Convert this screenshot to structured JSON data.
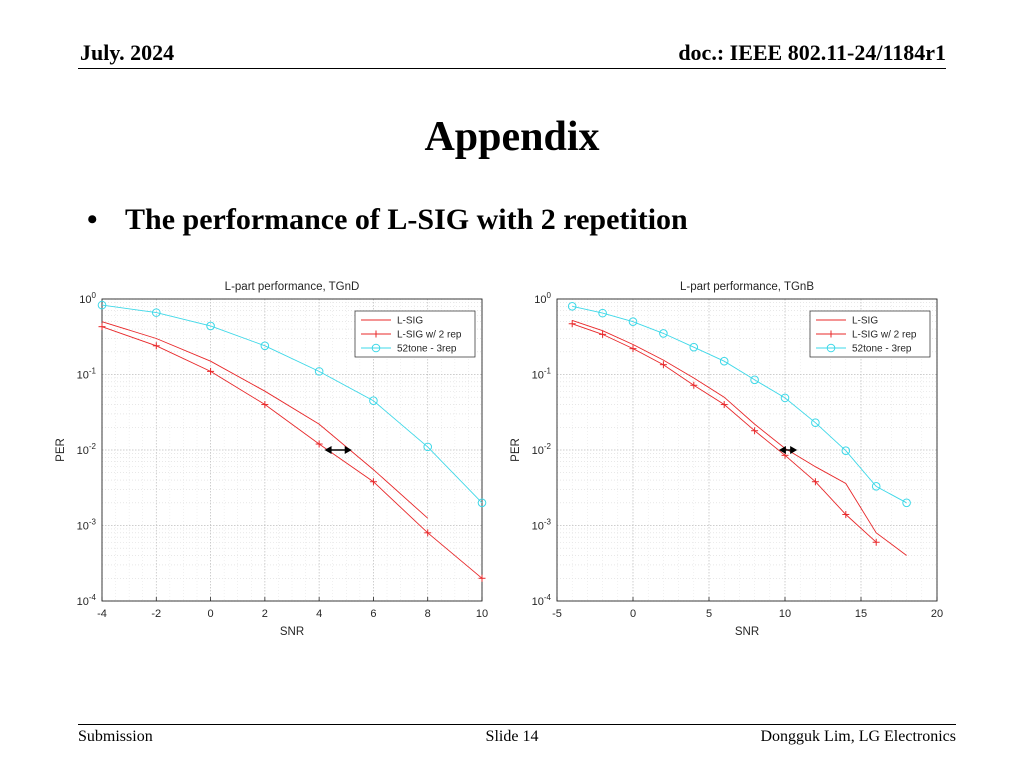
{
  "header": {
    "date": "July. 2024",
    "doc": "doc.: IEEE 802.11-24/1184r1"
  },
  "slide": {
    "title": "Appendix",
    "bullet_marker": "•",
    "bullet_text": "The performance of L-SIG with 2 repetition"
  },
  "footer": {
    "left": "Submission",
    "center": "Slide 14",
    "right": "Dongguk Lim, LG Electronics"
  },
  "colors": {
    "lsig": "#e8282a",
    "lsig_rep": "#e8282a",
    "tone52": "#3ed8e8",
    "arrow": "#000000",
    "grid": "#bdbdbd"
  },
  "chart_data": [
    {
      "type": "line",
      "title": "L-part performance, TGnD",
      "xlabel": "SNR",
      "ylabel": "PER",
      "yscale": "log",
      "xlim": [
        -4,
        10
      ],
      "ylim": [
        0.0001,
        1
      ],
      "xticks": [
        "-4",
        "-2",
        "0",
        "2",
        "4",
        "6",
        "8",
        "10"
      ],
      "grid": true,
      "legend_position": "top-right",
      "series": [
        {
          "name": "L-SIG",
          "marker": "none",
          "x": [
            -4,
            -2,
            0,
            2,
            4,
            6,
            8
          ],
          "y": [
            0.5,
            0.3,
            0.15,
            0.06,
            0.022,
            0.0055,
            0.00125
          ]
        },
        {
          "name": "L-SIG w/ 2 rep",
          "marker": "plus",
          "x": [
            -4,
            -2,
            0,
            2,
            4,
            6,
            8,
            10
          ],
          "y": [
            0.43,
            0.24,
            0.11,
            0.04,
            0.012,
            0.0038,
            0.0008,
            0.0002
          ]
        },
        {
          "name": "52tone - 3rep",
          "marker": "circle",
          "x": [
            -4,
            -2,
            0,
            2,
            4,
            6,
            8,
            10
          ],
          "y": [
            0.83,
            0.66,
            0.44,
            0.24,
            0.11,
            0.045,
            0.011,
            0.002
          ]
        }
      ],
      "annotations": [
        {
          "type": "double-arrow",
          "x_from": 4.2,
          "x_to": 5.2,
          "y": 0.01
        }
      ]
    },
    {
      "type": "line",
      "title": "L-part performance, TGnB",
      "xlabel": "SNR",
      "ylabel": "PER",
      "yscale": "log",
      "xlim": [
        -5,
        20
      ],
      "ylim": [
        0.0001,
        1
      ],
      "xticks": [
        "-5",
        "0",
        "5",
        "10",
        "15",
        "20"
      ],
      "grid": true,
      "legend_position": "top-right",
      "series": [
        {
          "name": "L-SIG",
          "marker": "none",
          "x": [
            -4,
            -2,
            0,
            2,
            4,
            6,
            8,
            10,
            12,
            14,
            16,
            18
          ],
          "y": [
            0.52,
            0.38,
            0.25,
            0.155,
            0.09,
            0.05,
            0.022,
            0.0105,
            0.006,
            0.0036,
            0.0008,
            0.0004
          ]
        },
        {
          "name": "L-SIG w/ 2 rep",
          "marker": "plus",
          "x": [
            -4,
            -2,
            0,
            2,
            4,
            6,
            8,
            10,
            12,
            14,
            16
          ],
          "y": [
            0.47,
            0.34,
            0.22,
            0.135,
            0.072,
            0.04,
            0.018,
            0.0085,
            0.0038,
            0.0014,
            0.0006
          ]
        },
        {
          "name": "52tone - 3rep",
          "marker": "circle",
          "x": [
            -4,
            -2,
            0,
            2,
            4,
            6,
            8,
            10,
            12,
            14,
            16,
            18
          ],
          "y": [
            0.8,
            0.65,
            0.5,
            0.35,
            0.23,
            0.15,
            0.085,
            0.049,
            0.023,
            0.0098,
            0.0033,
            0.002
          ]
        }
      ],
      "annotations": [
        {
          "type": "double-arrow",
          "x_from": 9.6,
          "x_to": 10.8,
          "y": 0.01
        }
      ]
    }
  ]
}
